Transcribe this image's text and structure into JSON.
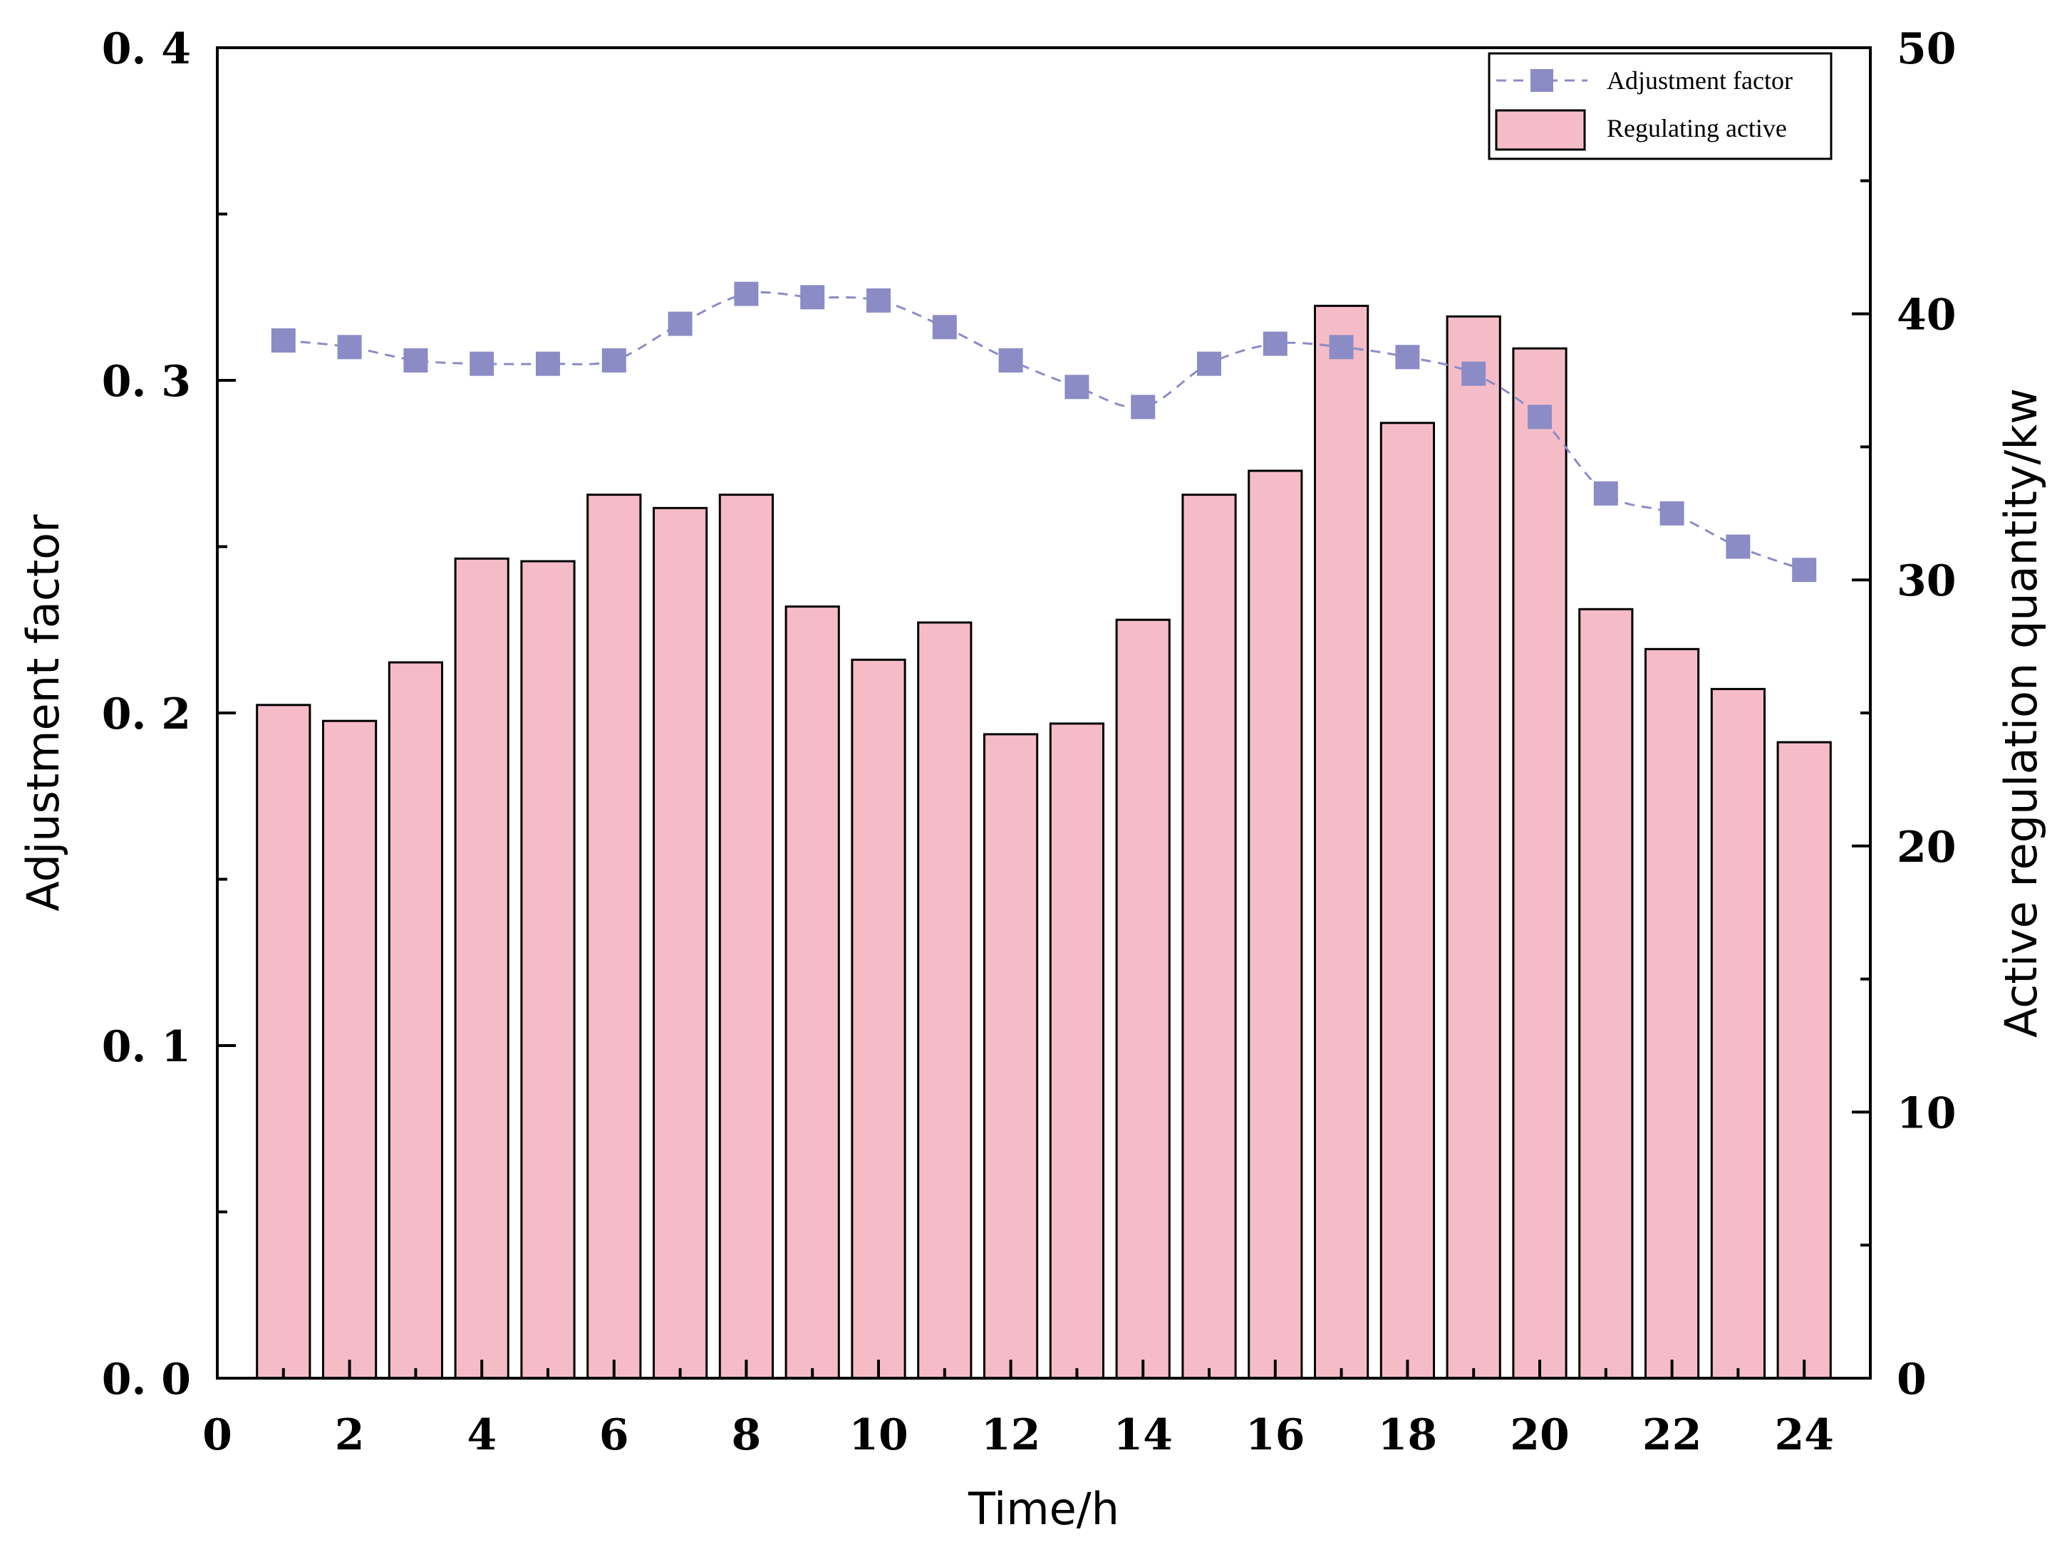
{
  "chart_data": {
    "type": "bar+line",
    "x": [
      1,
      2,
      3,
      4,
      5,
      6,
      7,
      8,
      9,
      10,
      11,
      12,
      13,
      14,
      15,
      16,
      17,
      18,
      19,
      20,
      21,
      22,
      23,
      24
    ],
    "xlabel": "Time/h",
    "ylabel_left": "Adjustment factor",
    "ylabel_right": "Active regulation quantity/kw",
    "xlim": [
      0,
      25
    ],
    "ylim_left": [
      0,
      0.4
    ],
    "ylim_right": [
      0,
      50
    ],
    "x_ticks": [
      0,
      2,
      4,
      6,
      8,
      10,
      12,
      14,
      16,
      18,
      20,
      22,
      24
    ],
    "x_tick_labels": [
      "0",
      "2",
      "4",
      "6",
      "8",
      "10",
      "12",
      "14",
      "16",
      "18",
      "20",
      "22",
      "24"
    ],
    "y_left_ticks": [
      0,
      0.1,
      0.2,
      0.3,
      0.4
    ],
    "y_left_tick_labels": [
      "0. 0",
      "0. 1",
      "0. 2",
      "0. 3",
      "0. 4"
    ],
    "y_right_ticks": [
      0,
      10,
      20,
      30,
      40,
      50
    ],
    "y_right_tick_labels": [
      "0",
      "10",
      "20",
      "30",
      "40",
      "50"
    ],
    "series": [
      {
        "name": "Adjustment factor",
        "kind": "line",
        "axis": "left",
        "color": "#8b8cc6",
        "values": [
          0.312,
          0.31,
          0.306,
          0.305,
          0.305,
          0.306,
          0.317,
          0.326,
          0.325,
          0.324,
          0.316,
          0.306,
          0.298,
          0.292,
          0.305,
          0.311,
          0.31,
          0.307,
          0.302,
          0.289,
          0.266,
          0.26,
          0.25,
          0.243
        ]
      },
      {
        "name": "Regulating active",
        "kind": "bar",
        "axis": "right",
        "color": "#f5bcc8",
        "values": [
          25.3,
          24.7,
          26.9,
          30.8,
          30.7,
          33.2,
          32.7,
          33.2,
          29.0,
          27.0,
          28.4,
          24.2,
          24.6,
          28.5,
          33.2,
          34.1,
          40.3,
          35.9,
          39.9,
          38.7,
          28.9,
          27.4,
          25.9,
          23.9
        ]
      }
    ],
    "legend": {
      "position": "top-right",
      "entries": [
        "Adjustment factor",
        "Regulating active"
      ]
    }
  }
}
